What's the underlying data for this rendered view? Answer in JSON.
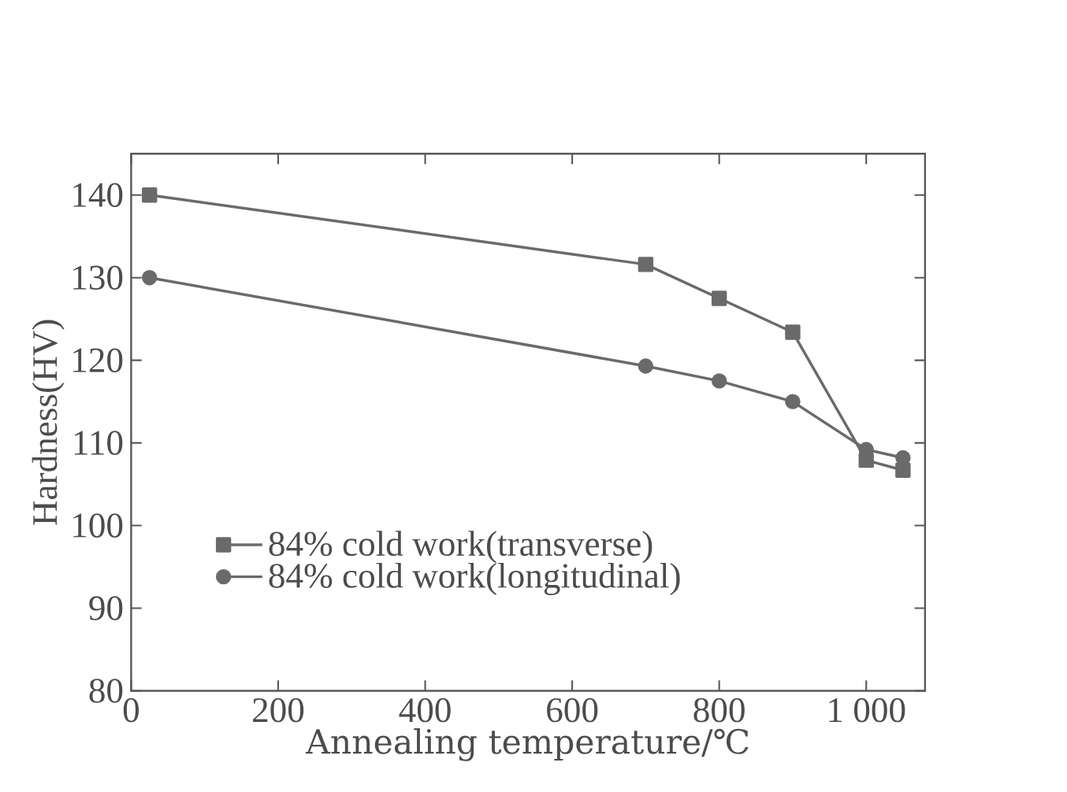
{
  "chart_data": {
    "type": "line",
    "xlabel": "Annealing temperature/℃",
    "ylabel": "Hardness(HV)",
    "xlim": [
      0,
      1080
    ],
    "ylim": [
      80,
      145
    ],
    "xticks": [
      0,
      200,
      400,
      600,
      800,
      {
        "value": 1000,
        "label": "1 000"
      }
    ],
    "yticks": [
      80,
      90,
      100,
      110,
      120,
      130,
      140
    ],
    "x": [
      25,
      700,
      800,
      900,
      1000,
      1050
    ],
    "series": [
      {
        "name": "84% cold work(transverse)",
        "color": "#6a6a6a",
        "marker": "square",
        "values": [
          140,
          131.6,
          127.5,
          123.4,
          107.9,
          106.7
        ]
      },
      {
        "name": "84% cold work(longitudinal)",
        "color": "#6a6a6a",
        "marker": "circle",
        "values": [
          130,
          119.3,
          117.5,
          115.0,
          109.2,
          108.2
        ]
      }
    ],
    "legend": "bottom left",
    "grid": false
  }
}
